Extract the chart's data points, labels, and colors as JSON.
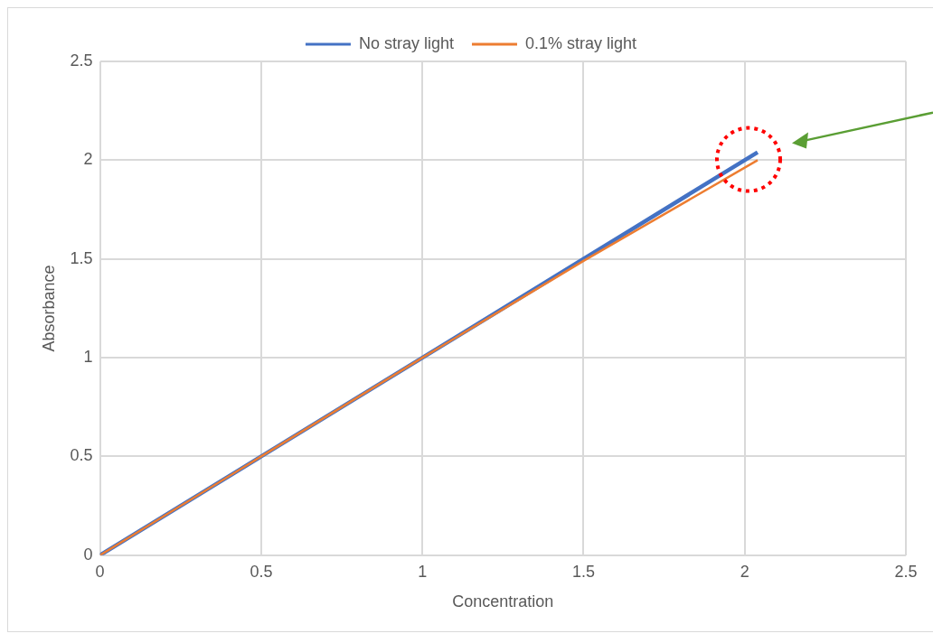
{
  "chart_data": {
    "type": "line",
    "xlabel": "Concentration",
    "ylabel": "Absorbance",
    "xlim": [
      0,
      2.5
    ],
    "xticks": [
      0,
      0.5,
      1,
      1.5,
      2,
      2.5
    ],
    "ylim": [
      0,
      2.5
    ],
    "yticks": [
      0,
      0.5,
      1,
      1.5,
      2,
      2.5
    ],
    "grid": true,
    "legend": "top",
    "marker": "none",
    "line_style": "solid",
    "series": [
      {
        "name": "No stray light",
        "color": "#4472c4",
        "x": [
          0,
          0.5,
          1,
          1.5,
          2.04
        ],
        "values": [
          0,
          0.5,
          1,
          1.5,
          2.04
        ]
      },
      {
        "name": "0.1% stray light",
        "color": "#ed7d31",
        "x": [
          0,
          0.5,
          1,
          1.5,
          2.04
        ],
        "values": [
          0,
          0.5,
          1,
          1.49,
          2.0
        ]
      }
    ]
  }
}
